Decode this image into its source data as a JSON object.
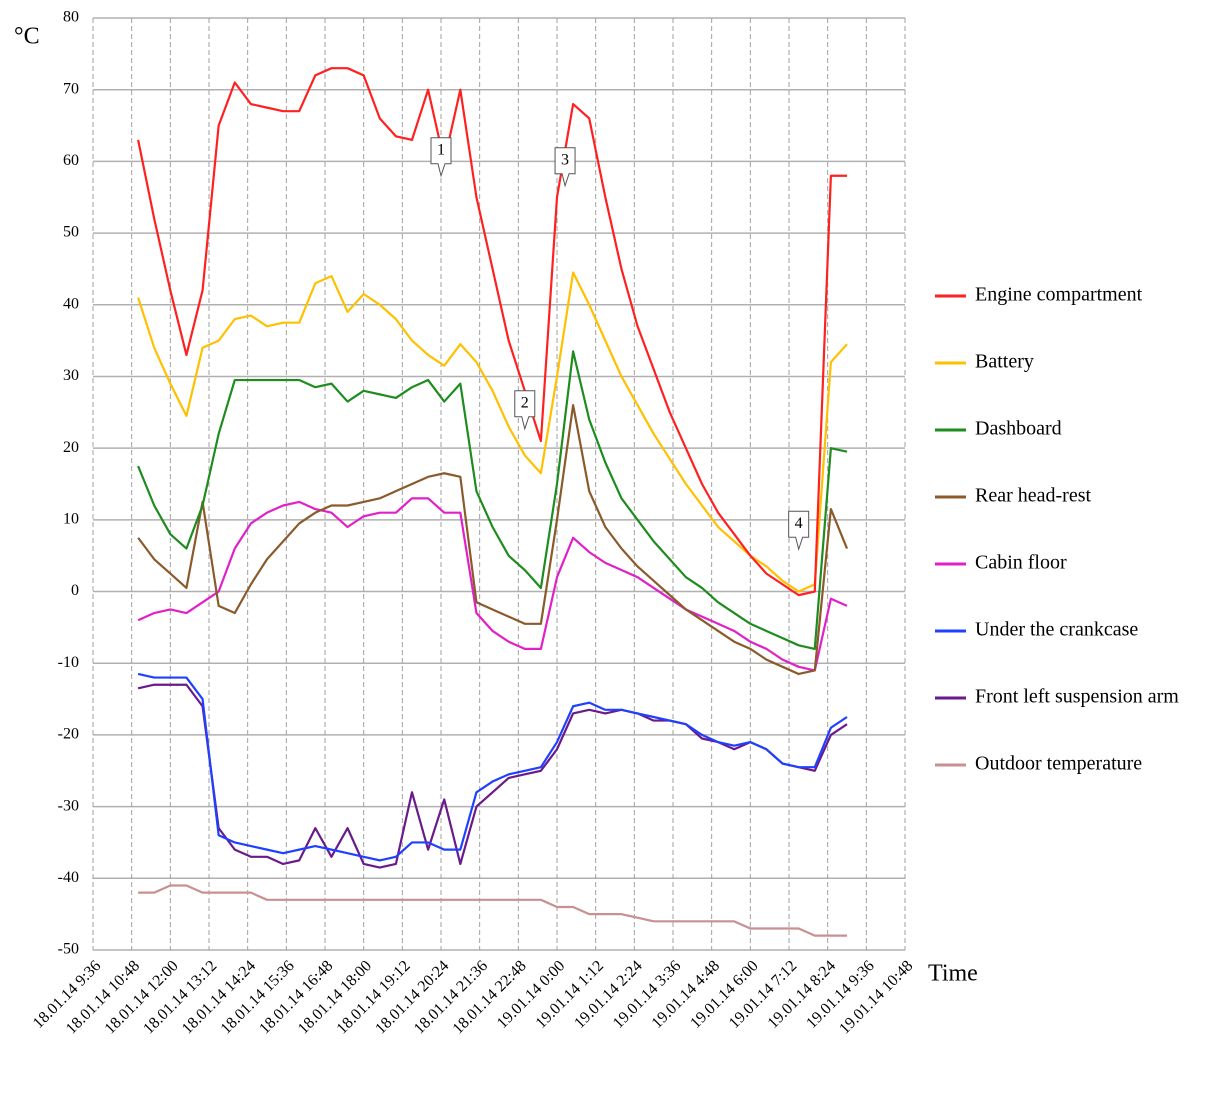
{
  "chart_data": {
    "type": "line",
    "y_label": "°C",
    "x_label": "Time",
    "xlim": [
      "18.01.14 9:36",
      "19.01.14 10:48"
    ],
    "xticks": [
      "18.01.14 9:36",
      "18.01.14 10:48",
      "18.01.14 12:00",
      "18.01.14 13:12",
      "18.01.14 14:24",
      "18.01.14 15:36",
      "18.01.14 16:48",
      "18.01.14 18:00",
      "18.01.14 19:12",
      "18.01.14 20:24",
      "18.01.14 21:36",
      "18.01.14 22:48",
      "19.01.14 0:00",
      "19.01.14 1:12",
      "19.01.14 2:24",
      "19.01.14 3:36",
      "19.01.14 4:48",
      "19.01.14 6:00",
      "19.01.14 7:12",
      "19.01.14 8:24",
      "19.01.14 9:36",
      "19.01.14 10:48"
    ],
    "ylim": [
      -50,
      80
    ],
    "yticks": [
      -50,
      -40,
      -30,
      -20,
      -10,
      0,
      10,
      20,
      30,
      40,
      50,
      60,
      70,
      80
    ],
    "grid": true,
    "legend": "right",
    "x": [
      "18.01.14 11:00",
      "18.01.14 11:30",
      "18.01.14 12:00",
      "18.01.14 12:30",
      "18.01.14 13:00",
      "18.01.14 13:30",
      "18.01.14 14:00",
      "18.01.14 14:30",
      "18.01.14 15:00",
      "18.01.14 15:30",
      "18.01.14 16:00",
      "18.01.14 16:30",
      "18.01.14 17:00",
      "18.01.14 17:30",
      "18.01.14 18:00",
      "18.01.14 18:30",
      "18.01.14 19:00",
      "18.01.14 19:30",
      "18.01.14 20:00",
      "18.01.14 20:30",
      "18.01.14 21:00",
      "18.01.14 21:30",
      "18.01.14 22:00",
      "18.01.14 22:30",
      "18.01.14 23:00",
      "18.01.14 23:30",
      "19.01.14 0:00",
      "19.01.14 0:30",
      "19.01.14 1:00",
      "19.01.14 1:30",
      "19.01.14 2:00",
      "19.01.14 2:30",
      "19.01.14 3:00",
      "19.01.14 3:30",
      "19.01.14 4:00",
      "19.01.14 4:30",
      "19.01.14 5:00",
      "19.01.14 5:30",
      "19.01.14 6:00",
      "19.01.14 6:30",
      "19.01.14 7:00",
      "19.01.14 7:30",
      "19.01.14 8:00",
      "19.01.14 8:30",
      "19.01.14 9:00"
    ],
    "series": [
      {
        "name": "Engine compartment",
        "color": "#ff2020",
        "values": [
          63,
          52,
          42,
          33,
          42,
          65,
          71,
          68,
          67.5,
          67,
          67,
          72,
          73,
          73,
          72,
          66,
          63.5,
          63,
          70,
          60,
          70,
          55,
          45,
          35,
          28,
          21,
          55,
          68,
          66,
          55,
          45,
          37,
          31,
          25,
          20,
          15,
          11,
          8,
          5,
          2.5,
          1,
          -0.5,
          0,
          58,
          58
        ]
      },
      {
        "name": "Battery",
        "color": "#ffc000",
        "values": [
          41,
          34,
          29,
          24.5,
          34,
          35,
          38,
          38.5,
          37,
          37.5,
          37.5,
          43,
          44,
          39,
          41.5,
          40,
          38,
          35,
          33,
          31.5,
          34.5,
          32,
          28,
          23,
          19,
          16.5,
          30,
          44.5,
          40,
          35,
          30,
          26,
          22,
          18.5,
          15,
          12,
          9,
          7,
          5,
          3.5,
          1.5,
          0,
          1,
          32,
          34.5
        ]
      },
      {
        "name": "Dashboard",
        "color": "#1e8c1e",
        "values": [
          17.5,
          12,
          8,
          6,
          12,
          22,
          29.5,
          29.5,
          29.5,
          29.5,
          29.5,
          28.5,
          29,
          26.5,
          28,
          27.5,
          27,
          28.5,
          29.5,
          26.5,
          29,
          14,
          9,
          5,
          3,
          0.5,
          15,
          33.5,
          24,
          18,
          13,
          10,
          7,
          4.5,
          2,
          0.5,
          -1.5,
          -3,
          -4.5,
          -5.5,
          -6.5,
          -7.5,
          -8,
          20,
          19.5
        ]
      },
      {
        "name": "Rear head-rest",
        "color": "#8b5a2b",
        "values": [
          7.5,
          4.5,
          2.5,
          0.5,
          12.5,
          -2,
          -3,
          1,
          4.5,
          7,
          9.5,
          11,
          12,
          12,
          12.5,
          13,
          14,
          15,
          16,
          16.5,
          16,
          -1.5,
          -2.5,
          -3.5,
          -4.5,
          -4.5,
          10,
          26,
          14,
          9,
          6,
          3.5,
          1.5,
          -0.5,
          -2.5,
          -4,
          -5.5,
          -7,
          -8,
          -9.5,
          -10.5,
          -11.5,
          -11,
          11.5,
          6
        ]
      },
      {
        "name": "Cabin floor",
        "color": "#e020c8",
        "values": [
          -4,
          -3,
          -2.5,
          -3,
          -1.5,
          0,
          6,
          9.5,
          11,
          12,
          12.5,
          11.5,
          11,
          9,
          10.5,
          11,
          11,
          13,
          13,
          11,
          11,
          -3,
          -5.5,
          -7,
          -8,
          -8,
          2,
          7.5,
          5.5,
          4,
          3,
          2,
          0.5,
          -1,
          -2.5,
          -3.5,
          -4.5,
          -5.5,
          -7,
          -8,
          -9.5,
          -10.5,
          -11,
          -1,
          -2
        ]
      },
      {
        "name": "Under the crankcase",
        "color": "#2040ff",
        "values": [
          -11.5,
          -12,
          -12,
          -12,
          -15,
          -34,
          -35,
          -35.5,
          -36,
          -36.5,
          -36,
          -35.5,
          -36,
          -36.5,
          -37,
          -37.5,
          -37,
          -35,
          -35,
          -36,
          -36,
          -28,
          -26.5,
          -25.5,
          -25,
          -24.5,
          -21,
          -16,
          -15.5,
          -16.5,
          -16.5,
          -17,
          -17.5,
          -18,
          -18.5,
          -20,
          -21,
          -21.5,
          -21,
          -22,
          -24,
          -24.5,
          -24.5,
          -19,
          -17.5
        ]
      },
      {
        "name": "Front left suspension arm",
        "color": "#6a1a8a",
        "values": [
          -13.5,
          -13,
          -13,
          -13,
          -16,
          -33,
          -36,
          -37,
          -37,
          -38,
          -37.5,
          -33,
          -37,
          -33,
          -38,
          -38.5,
          -38,
          -28,
          -36,
          -29,
          -38,
          -30,
          -28,
          -26,
          -25.5,
          -25,
          -22,
          -17,
          -16.5,
          -17,
          -16.5,
          -17,
          -18,
          -18,
          -18.5,
          -20.5,
          -21,
          -22,
          -21,
          -22,
          -24,
          -24.5,
          -25,
          -20,
          -18.5
        ]
      },
      {
        "name": "Outdoor temperature",
        "color": "#c89090",
        "values": [
          -42,
          -42,
          -41,
          -41,
          -42,
          -42,
          -42,
          -42,
          -43,
          -43,
          -43,
          -43,
          -43,
          -43,
          -43,
          -43,
          -43,
          -43,
          -43,
          -43,
          -43,
          -43,
          -43,
          -43,
          -43,
          -43,
          -44,
          -44,
          -45,
          -45,
          -45,
          -45.5,
          -46,
          -46,
          -46,
          -46,
          -46,
          -46,
          -47,
          -47,
          -47,
          -47,
          -48,
          -48,
          -48
        ]
      }
    ],
    "annotations": [
      {
        "text": "1",
        "x": "18.01.14 20:24",
        "y": 58
      },
      {
        "text": "2",
        "x": "18.01.14 23:00",
        "y": 22.7
      },
      {
        "text": "3",
        "x": "19.01.14 0:15",
        "y": 56.6
      },
      {
        "text": "4",
        "x": "19.01.14 7:30",
        "y": 5.9
      }
    ]
  }
}
